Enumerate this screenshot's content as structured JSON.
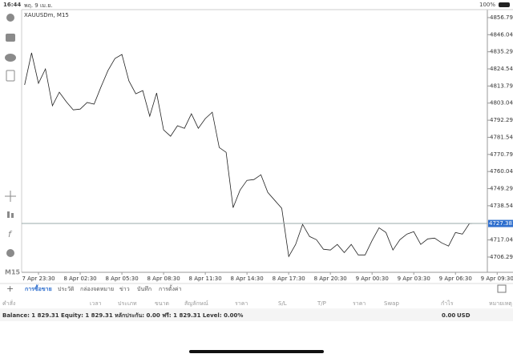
{
  "status_bar": {
    "time": "16:44",
    "date": "พฤ. 9 เม.ย.",
    "battery": "100%"
  },
  "chart_data": {
    "type": "line",
    "title": "XAUUSDm, M15",
    "color": "#222222",
    "categories": [
      null,
      null,
      "7 Apr 23:30",
      null,
      null,
      null,
      null,
      null,
      "8 Apr 02:30",
      null,
      null,
      null,
      null,
      null,
      "8 Apr 05:30",
      null,
      null,
      null,
      null,
      null,
      "8 Apr 08:30",
      null,
      null,
      null,
      null,
      null,
      "8 Apr 11:30",
      null,
      null,
      null,
      null,
      null,
      "8 Apr 14:30",
      null,
      null,
      null,
      null,
      null,
      "8 Apr 17:30",
      null,
      null,
      null,
      null,
      null,
      "8 Apr 20:30",
      null,
      null,
      null,
      null,
      null,
      "9 Apr 00:30",
      null,
      null,
      null,
      null,
      null,
      "9 Apr 03:30",
      null,
      null,
      null,
      null,
      null,
      "9 Apr 06:30",
      null,
      null,
      null,
      null,
      null,
      "9 Apr 09:30"
    ],
    "values": [
      4814.5,
      4834.6,
      4815.5,
      4824.5,
      4801.4,
      4809.9,
      4803.9,
      4798.8,
      4799.3,
      4803.4,
      4802.4,
      4813.4,
      4823.5,
      4831.1,
      4833.6,
      4817.0,
      4808.9,
      4810.9,
      4794.8,
      4809.4,
      4786.2,
      4782.2,
      4788.8,
      4787.2,
      4796.3,
      4787.2,
      4793.3,
      4797.3,
      4775.1,
      4772.1,
      4737.3,
      4748.4,
      4754.5,
      4755.0,
      4758.0,
      4746.9,
      4741.9,
      4736.9,
      4706.6,
      4714.2,
      4726.8,
      4719.2,
      4717.2,
      4711.2,
      4710.7,
      4714.2,
      4709.1,
      4714.2,
      4707.6,
      4707.6,
      4716.7,
      4724.7,
      4721.7,
      4710.7,
      4717.2,
      4720.7,
      4722.2,
      4714.2,
      4717.7,
      4718.2,
      4715.2,
      4713.2,
      4721.7,
      4720.7,
      4727.3,
      4727.4,
      null,
      null,
      null
    ],
    "ylim": [
      4696.7,
      4861.8
    ],
    "yticks": [
      {
        "value": 4856.79,
        "label": "4856.790"
      },
      {
        "value": 4846.04,
        "label": "4846.040"
      },
      {
        "value": 4835.29,
        "label": "4835.290"
      },
      {
        "value": 4824.54,
        "label": "4824.540"
      },
      {
        "value": 4813.79,
        "label": "4813.790"
      },
      {
        "value": 4803.04,
        "label": "4803.040"
      },
      {
        "value": 4792.29,
        "label": "4792.290"
      },
      {
        "value": 4781.54,
        "label": "4781.540"
      },
      {
        "value": 4770.79,
        "label": "4770.790"
      },
      {
        "value": 4760.04,
        "label": "4760.040"
      },
      {
        "value": 4749.29,
        "label": "4749.290"
      },
      {
        "value": 4738.54,
        "label": "4738.540"
      },
      {
        "value": 4717.04,
        "label": "4717.040"
      },
      {
        "value": 4706.29,
        "label": "4706.290"
      }
    ],
    "price_line": 4727.381,
    "grid": false
  },
  "timeframe": "M15",
  "tabs": [
    "การซื้อขาย",
    "ประวัติ",
    "กล่องจดหมาย",
    "ข่าว",
    "บันทึก",
    "การตั้งค่า"
  ],
  "columns": [
    "คำสั่ง",
    "เวลา",
    "ประเภท",
    "ขนาด",
    "สัญลักษณ์",
    "ราคา",
    "S/L",
    "T/P",
    "ราคา",
    "Swap",
    "กำไร",
    "หมายเหตุ"
  ],
  "summary": {
    "text": "Balance: 1 829.31 Equity: 1 829.31 หลักประกัน: 0.00 ฟรี: 1 829.31 Level: 0.00%",
    "profit": "0.00",
    "currency": "USD"
  }
}
